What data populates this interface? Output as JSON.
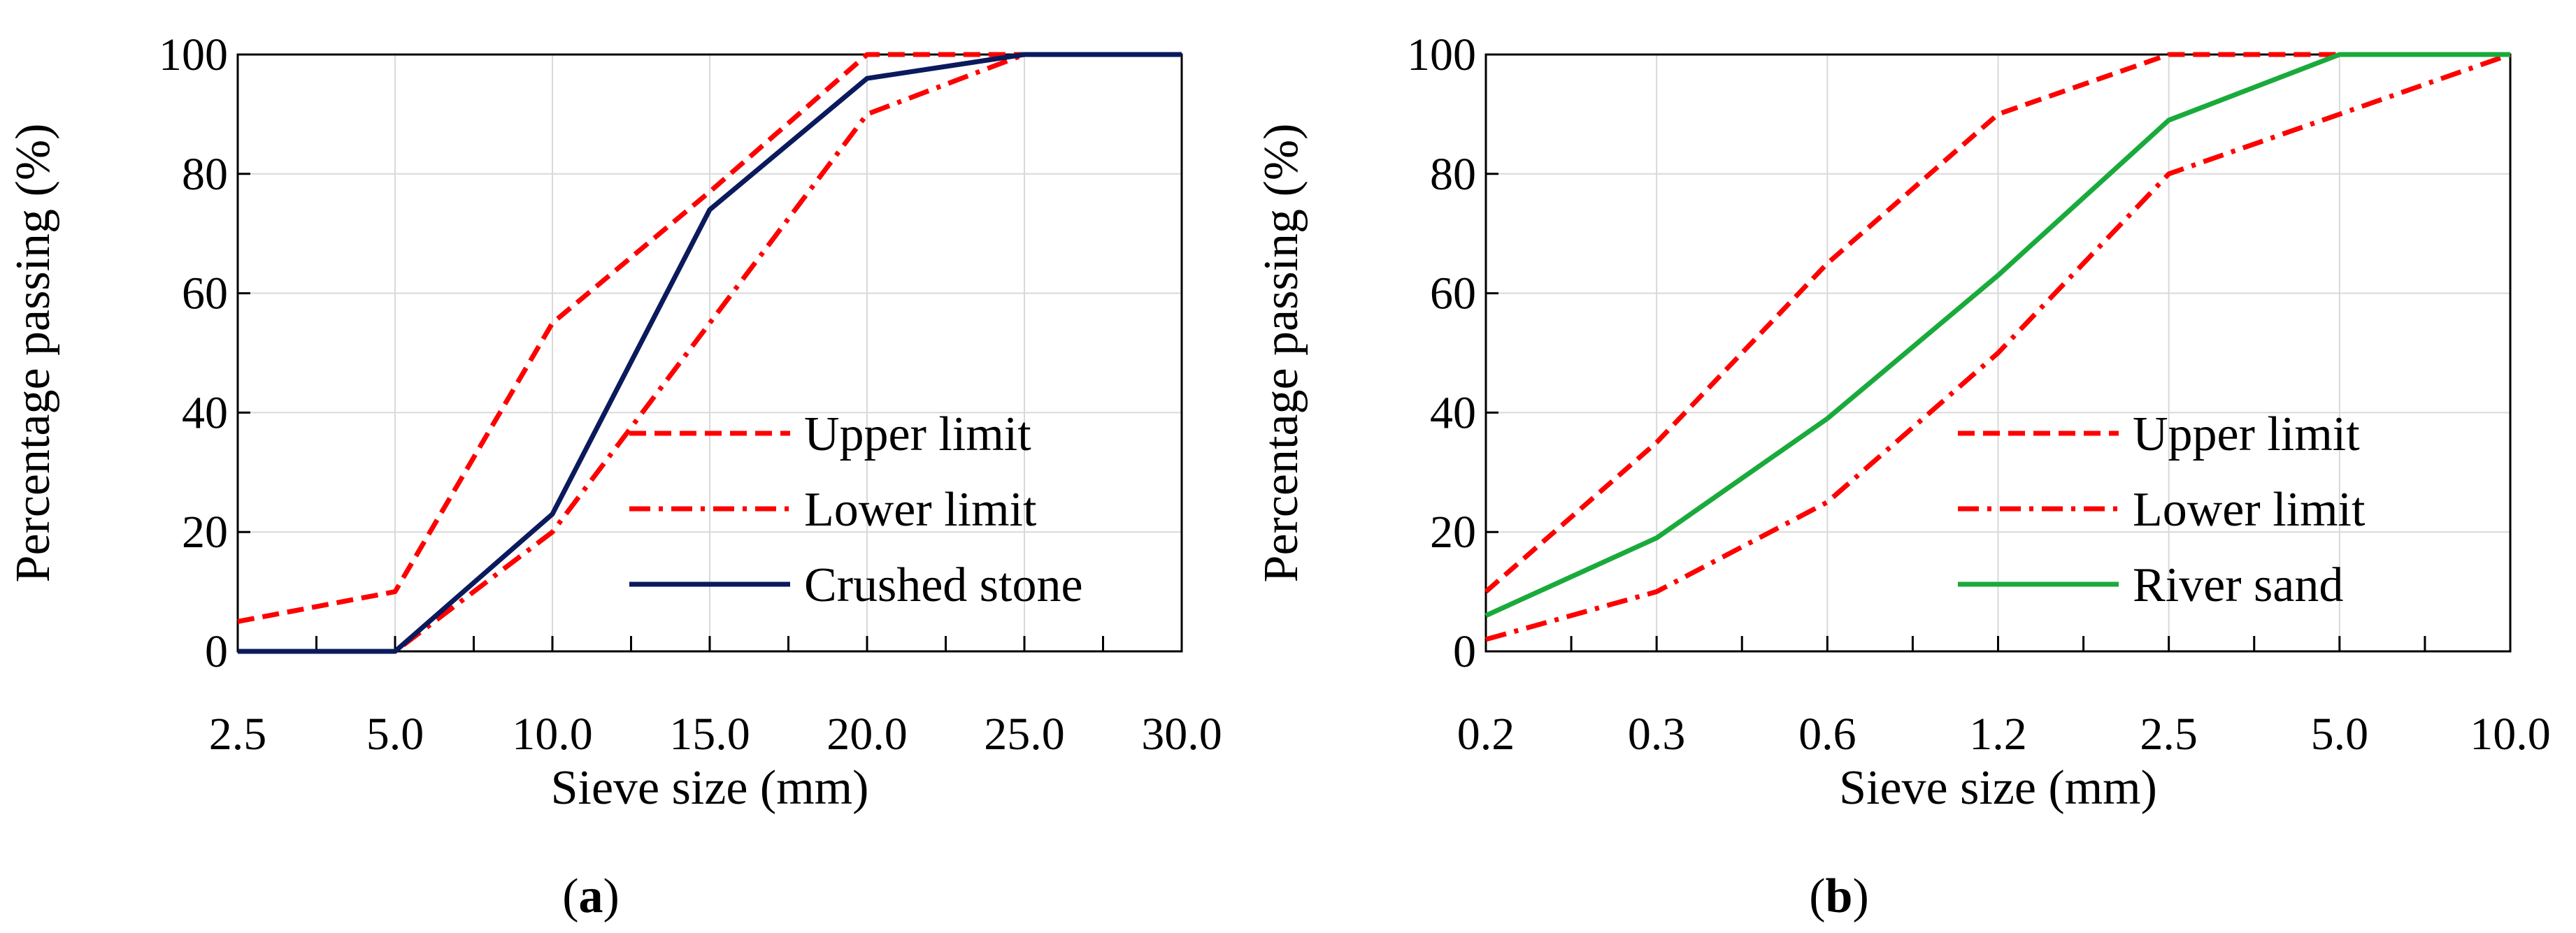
{
  "chart_data": [
    {
      "type": "line",
      "panel_label": {
        "open": "(",
        "letter": "a",
        "close": ")"
      },
      "categories": [
        "2.5",
        "5.0",
        "10.0",
        "15.0",
        "20.0",
        "25.0",
        "30.0"
      ],
      "series": [
        {
          "name": "Upper limit",
          "style": "dashed",
          "color": "#ff0000",
          "values": [
            5,
            10,
            55,
            77,
            100,
            100,
            100
          ]
        },
        {
          "name": "Lower limit",
          "style": "dashdot",
          "color": "#ff0000",
          "values": [
            0,
            0,
            20,
            55,
            90,
            100,
            100
          ]
        },
        {
          "name": "Crushed stone",
          "style": "solid",
          "color": "#0a1a5c",
          "values": [
            0,
            0,
            23,
            74,
            96,
            100,
            100
          ]
        }
      ],
      "title": "",
      "xlabel": "Sieve size (mm)",
      "ylabel": "Percentage passing (%)",
      "ylim": [
        0,
        100
      ],
      "yticks": [
        "0",
        "20",
        "40",
        "60",
        "80",
        "100"
      ],
      "grid": true,
      "legend": "bottom-right"
    },
    {
      "type": "line",
      "panel_label": {
        "open": "(",
        "letter": "b",
        "close": ")"
      },
      "categories": [
        "0.2",
        "0.3",
        "0.6",
        "1.2",
        "2.5",
        "5.0",
        "10.0"
      ],
      "series": [
        {
          "name": "Upper limit",
          "style": "dashed",
          "color": "#ff0000",
          "values": [
            10,
            35,
            65,
            90,
            100,
            100,
            100
          ]
        },
        {
          "name": "Lower limit",
          "style": "dashdot",
          "color": "#ff0000",
          "values": [
            2,
            10,
            25,
            50,
            80,
            90,
            100
          ]
        },
        {
          "name": "River sand",
          "style": "solid",
          "color": "#1aaa3c",
          "values": [
            6,
            19,
            39,
            63,
            89,
            100,
            100
          ]
        }
      ],
      "title": "",
      "xlabel": "Sieve size (mm)",
      "ylabel": "Percentage passing (%)",
      "ylim": [
        0,
        100
      ],
      "yticks": [
        "0",
        "20",
        "40",
        "60",
        "80",
        "100"
      ],
      "grid": true,
      "legend": "bottom-right"
    }
  ]
}
